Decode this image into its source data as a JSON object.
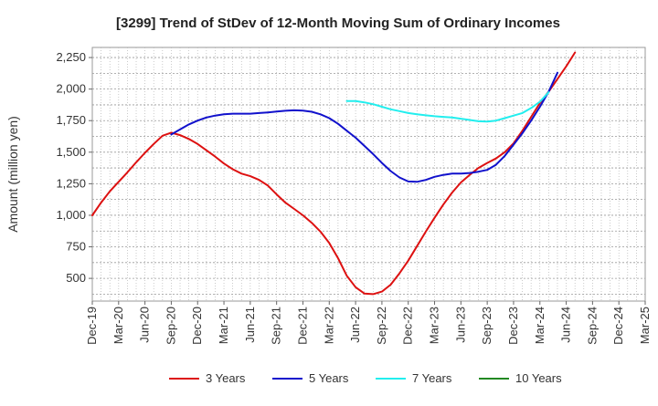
{
  "chart_data": {
    "type": "line",
    "title": "[3299]  Trend of StDev of 12-Month Moving Sum of Ordinary Incomes",
    "ylabel": "Amount (million yen)",
    "xlabel": "",
    "ylim": [
      320,
      2330
    ],
    "yticks": [
      500,
      750,
      1000,
      1250,
      1500,
      1750,
      2000,
      2250
    ],
    "ytick_labels": [
      "500",
      "750",
      "1,000",
      "1,250",
      "1,500",
      "1,750",
      "2,000",
      "2,250"
    ],
    "xtick_labels": [
      "Dec-19",
      "Mar-20",
      "Jun-20",
      "Sep-20",
      "Dec-20",
      "Mar-21",
      "Jun-21",
      "Sep-21",
      "Dec-21",
      "Mar-22",
      "Jun-22",
      "Sep-22",
      "Dec-22",
      "Mar-23",
      "Jun-23",
      "Sep-23",
      "Dec-23",
      "Mar-24",
      "Jun-24",
      "Sep-24",
      "Dec-24",
      "Mar-25"
    ],
    "grid": true,
    "legend_position": "bottom",
    "series": [
      {
        "name": "3 Years",
        "color": "#dd1111",
        "values": [
          1000,
          1100,
          1190,
          1265,
          1340,
          1420,
          1495,
          1565,
          1630,
          1655,
          1635,
          1605,
          1565,
          1515,
          1465,
          1410,
          1365,
          1330,
          1310,
          1280,
          1235,
          1165,
          1100,
          1050,
          1000,
          940,
          870,
          780,
          660,
          520,
          430,
          380,
          375,
          395,
          450,
          540,
          640,
          755,
          870,
          980,
          1085,
          1180,
          1260,
          1320,
          1375,
          1415,
          1450,
          1500,
          1570,
          1670,
          1780,
          1890,
          1980,
          2080,
          2180,
          2290
        ]
      },
      {
        "name": "5 Years",
        "color": "#1111cc",
        "values": [
          null,
          null,
          null,
          null,
          null,
          null,
          null,
          null,
          null,
          1640,
          1680,
          1720,
          1750,
          1775,
          1790,
          1800,
          1805,
          1805,
          1805,
          1810,
          1815,
          1822,
          1828,
          1832,
          1830,
          1820,
          1800,
          1770,
          1725,
          1670,
          1615,
          1550,
          1485,
          1415,
          1350,
          1300,
          1268,
          1265,
          1280,
          1305,
          1320,
          1330,
          1330,
          1335,
          1345,
          1360,
          1400,
          1470,
          1560,
          1650,
          1750,
          1860,
          1980,
          2130
        ]
      },
      {
        "name": "7 Years",
        "color": "#22eeee",
        "values": [
          null,
          null,
          null,
          null,
          null,
          null,
          null,
          null,
          null,
          null,
          null,
          null,
          null,
          null,
          null,
          null,
          null,
          null,
          null,
          null,
          null,
          null,
          null,
          null,
          null,
          null,
          null,
          null,
          null,
          1905,
          1905,
          1895,
          1880,
          1860,
          1840,
          1825,
          1810,
          1800,
          1792,
          1785,
          1780,
          1775,
          1765,
          1755,
          1745,
          1742,
          1750,
          1770,
          1790,
          1810,
          1850,
          1900,
          1975
        ]
      },
      {
        "name": "10 Years",
        "color": "#228822",
        "values": []
      }
    ]
  }
}
